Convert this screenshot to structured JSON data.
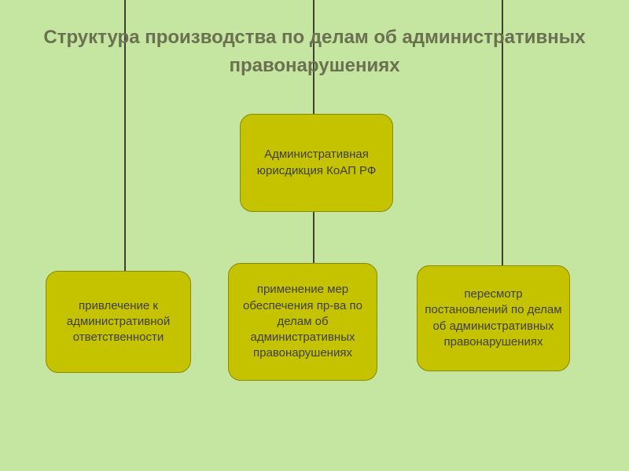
{
  "diagram": {
    "type": "tree",
    "background_color": "#c5e6a1",
    "title_color": "#6b7050",
    "title_fontsize": 24,
    "node_fill_color": "#c5c200",
    "node_border_color": "#8a8a00",
    "node_text_color": "#404030",
    "node_fontsize": 15,
    "node_border_radius": 16,
    "connector_color": "#404030",
    "connector_width": 2,
    "title": "Структура производства по делам об административных правонарушениях",
    "root": {
      "text": "Административная юрисдикция КоАП РФ"
    },
    "children": [
      {
        "text": "привлечение к административной ответственности"
      },
      {
        "text": "применение мер обеспечения пр-ва по делам об административных правонарушениях"
      },
      {
        "text": "пересмотр постановлений по делам об административных правонарушениях"
      }
    ]
  }
}
